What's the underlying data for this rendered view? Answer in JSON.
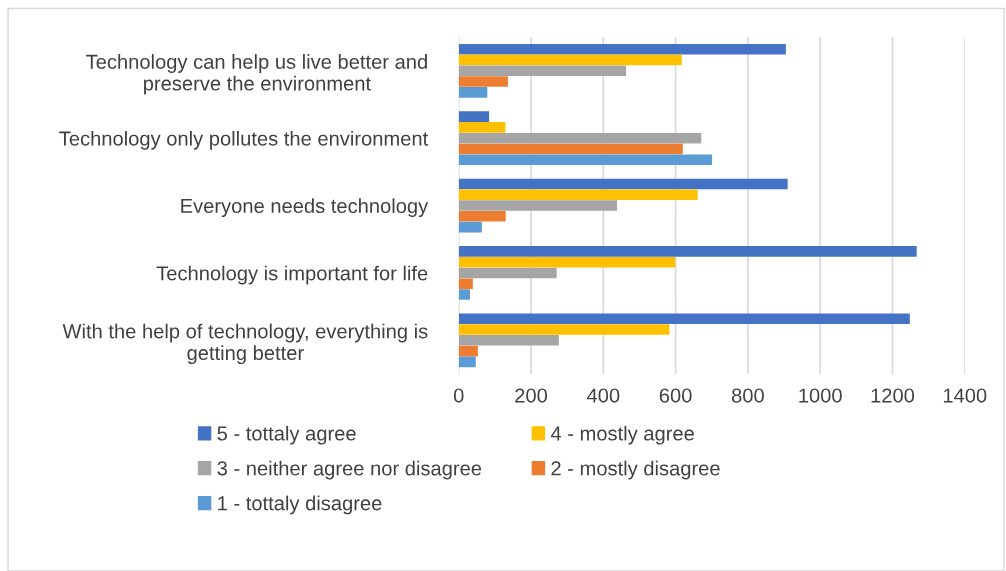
{
  "chart_data": {
    "type": "bar",
    "orientation": "horizontal",
    "categories": [
      "Technology can help us live better and preserve the environment",
      "Technology only pollutes the environment",
      "Everyone needs technology",
      "Technology is important for life",
      "With the help of technology, everything is getting better"
    ],
    "series": [
      {
        "name": "5 - tottaly agree",
        "color": "#4472c4",
        "values": [
          905,
          84,
          910,
          1267,
          1248
        ]
      },
      {
        "name": "4 - mostly agree",
        "color": "#ffc000",
        "values": [
          617,
          129,
          661,
          599,
          583
        ]
      },
      {
        "name": "3 - neither agree nor disagree",
        "color": "#a5a5a5",
        "values": [
          463,
          671,
          438,
          271,
          277
        ]
      },
      {
        "name": "2 - mostly disagree",
        "color": "#ed7d31",
        "values": [
          136,
          620,
          130,
          39,
          53
        ]
      },
      {
        "name": "1 - tottaly disagree",
        "color": "#5b9bd5",
        "values": [
          79,
          701,
          64,
          31,
          47
        ]
      }
    ],
    "xlim": [
      0,
      1400
    ],
    "xticks": [
      0,
      200,
      400,
      600,
      800,
      1000,
      1200,
      1400
    ],
    "grid": "x",
    "legend": "bottom"
  }
}
